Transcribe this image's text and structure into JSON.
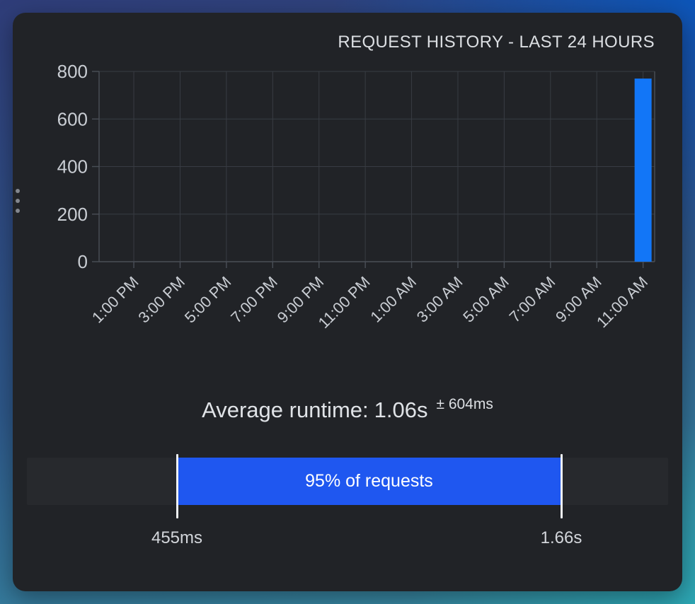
{
  "chart_data": {
    "type": "bar",
    "title": "REQUEST HISTORY - LAST 24 HOURS",
    "categories": [
      "1:00 PM",
      "3:00 PM",
      "5:00 PM",
      "7:00 PM",
      "9:00 PM",
      "11:00 PM",
      "1:00 AM",
      "3:00 AM",
      "5:00 AM",
      "7:00 AM",
      "9:00 AM",
      "11:00 AM"
    ],
    "values": [
      0,
      0,
      0,
      0,
      0,
      0,
      0,
      0,
      0,
      0,
      0,
      770
    ],
    "xlabel": "",
    "ylabel": "",
    "ylim": [
      0,
      800
    ],
    "yticks": [
      0,
      200,
      400,
      600,
      800
    ],
    "grid": true,
    "legend": false,
    "bar_color": "#1276f7"
  },
  "stats": {
    "average_label": "Average runtime:",
    "average_value": "1.06s",
    "deviation": "± 604ms"
  },
  "range_meter": {
    "label": "95% of requests",
    "min_label": "455ms",
    "max_label": "1.66s",
    "fill_color": "#1f57f0",
    "track_color": "#27292d"
  },
  "colors": {
    "panel_bg": "#212327",
    "bar_blue": "#1276f7",
    "range_blue": "#1f57f0"
  }
}
